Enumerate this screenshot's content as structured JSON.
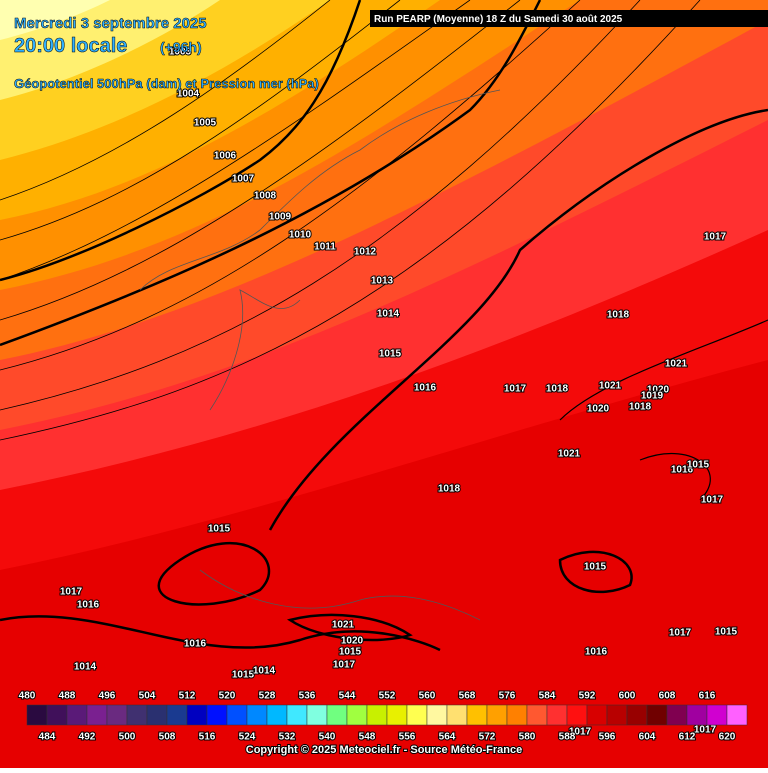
{
  "header": {
    "date": "Mercredi 3 septembre 2025",
    "time": "20:00 locale",
    "lead": "(+96h)",
    "field": "Géopotentiel 500hPa (dam) et Pression mer (hPa)",
    "run": "Run PEARP (Moyenne) 18 Z du Samedi 30 août 2025"
  },
  "pressure_labels": [
    1003,
    1004,
    1005,
    1006,
    1007,
    1008,
    1009,
    1010,
    1011,
    1012,
    1013,
    1014,
    1015,
    1016,
    1017,
    1018,
    1021,
    1020,
    1019,
    1018,
    1020,
    1021,
    1018,
    1015,
    1017,
    1018,
    1021,
    1016,
    1015,
    1017,
    1015,
    1017,
    1016,
    1021,
    1020,
    1015,
    1016,
    1014,
    1015,
    1014,
    1017,
    1016,
    1017,
    1015,
    1017,
    1017
  ],
  "colorbar": {
    "labels": [
      480,
      484,
      488,
      492,
      496,
      500,
      504,
      508,
      512,
      516,
      520,
      524,
      528,
      532,
      536,
      540,
      544,
      548,
      552,
      556,
      560,
      564,
      568,
      572,
      576,
      580,
      584,
      588,
      592,
      596,
      600,
      604,
      608,
      612,
      616,
      620
    ],
    "colors": [
      "#2a0a40",
      "#40105a",
      "#5a1a78",
      "#7a2090",
      "#6a2a80",
      "#403070",
      "#2a3070",
      "#1a3a90",
      "#0000c0",
      "#0010ff",
      "#0050ff",
      "#0088ff",
      "#00b8ff",
      "#40e8ff",
      "#80ffe0",
      "#70ff80",
      "#a0ff40",
      "#c8f000",
      "#e8f000",
      "#ffff50",
      "#fff8a0",
      "#ffe070",
      "#ffc000",
      "#ffa000",
      "#ff8000",
      "#ff5830",
      "#ff3030",
      "#ff1010",
      "#d80000",
      "#b80000",
      "#980000",
      "#700000",
      "#800050",
      "#a000a0",
      "#d000d0",
      "#ff60ff"
    ]
  },
  "footer": {
    "copyright": "Copyright © 2025 Meteociel.fr - Source Météo-France"
  }
}
